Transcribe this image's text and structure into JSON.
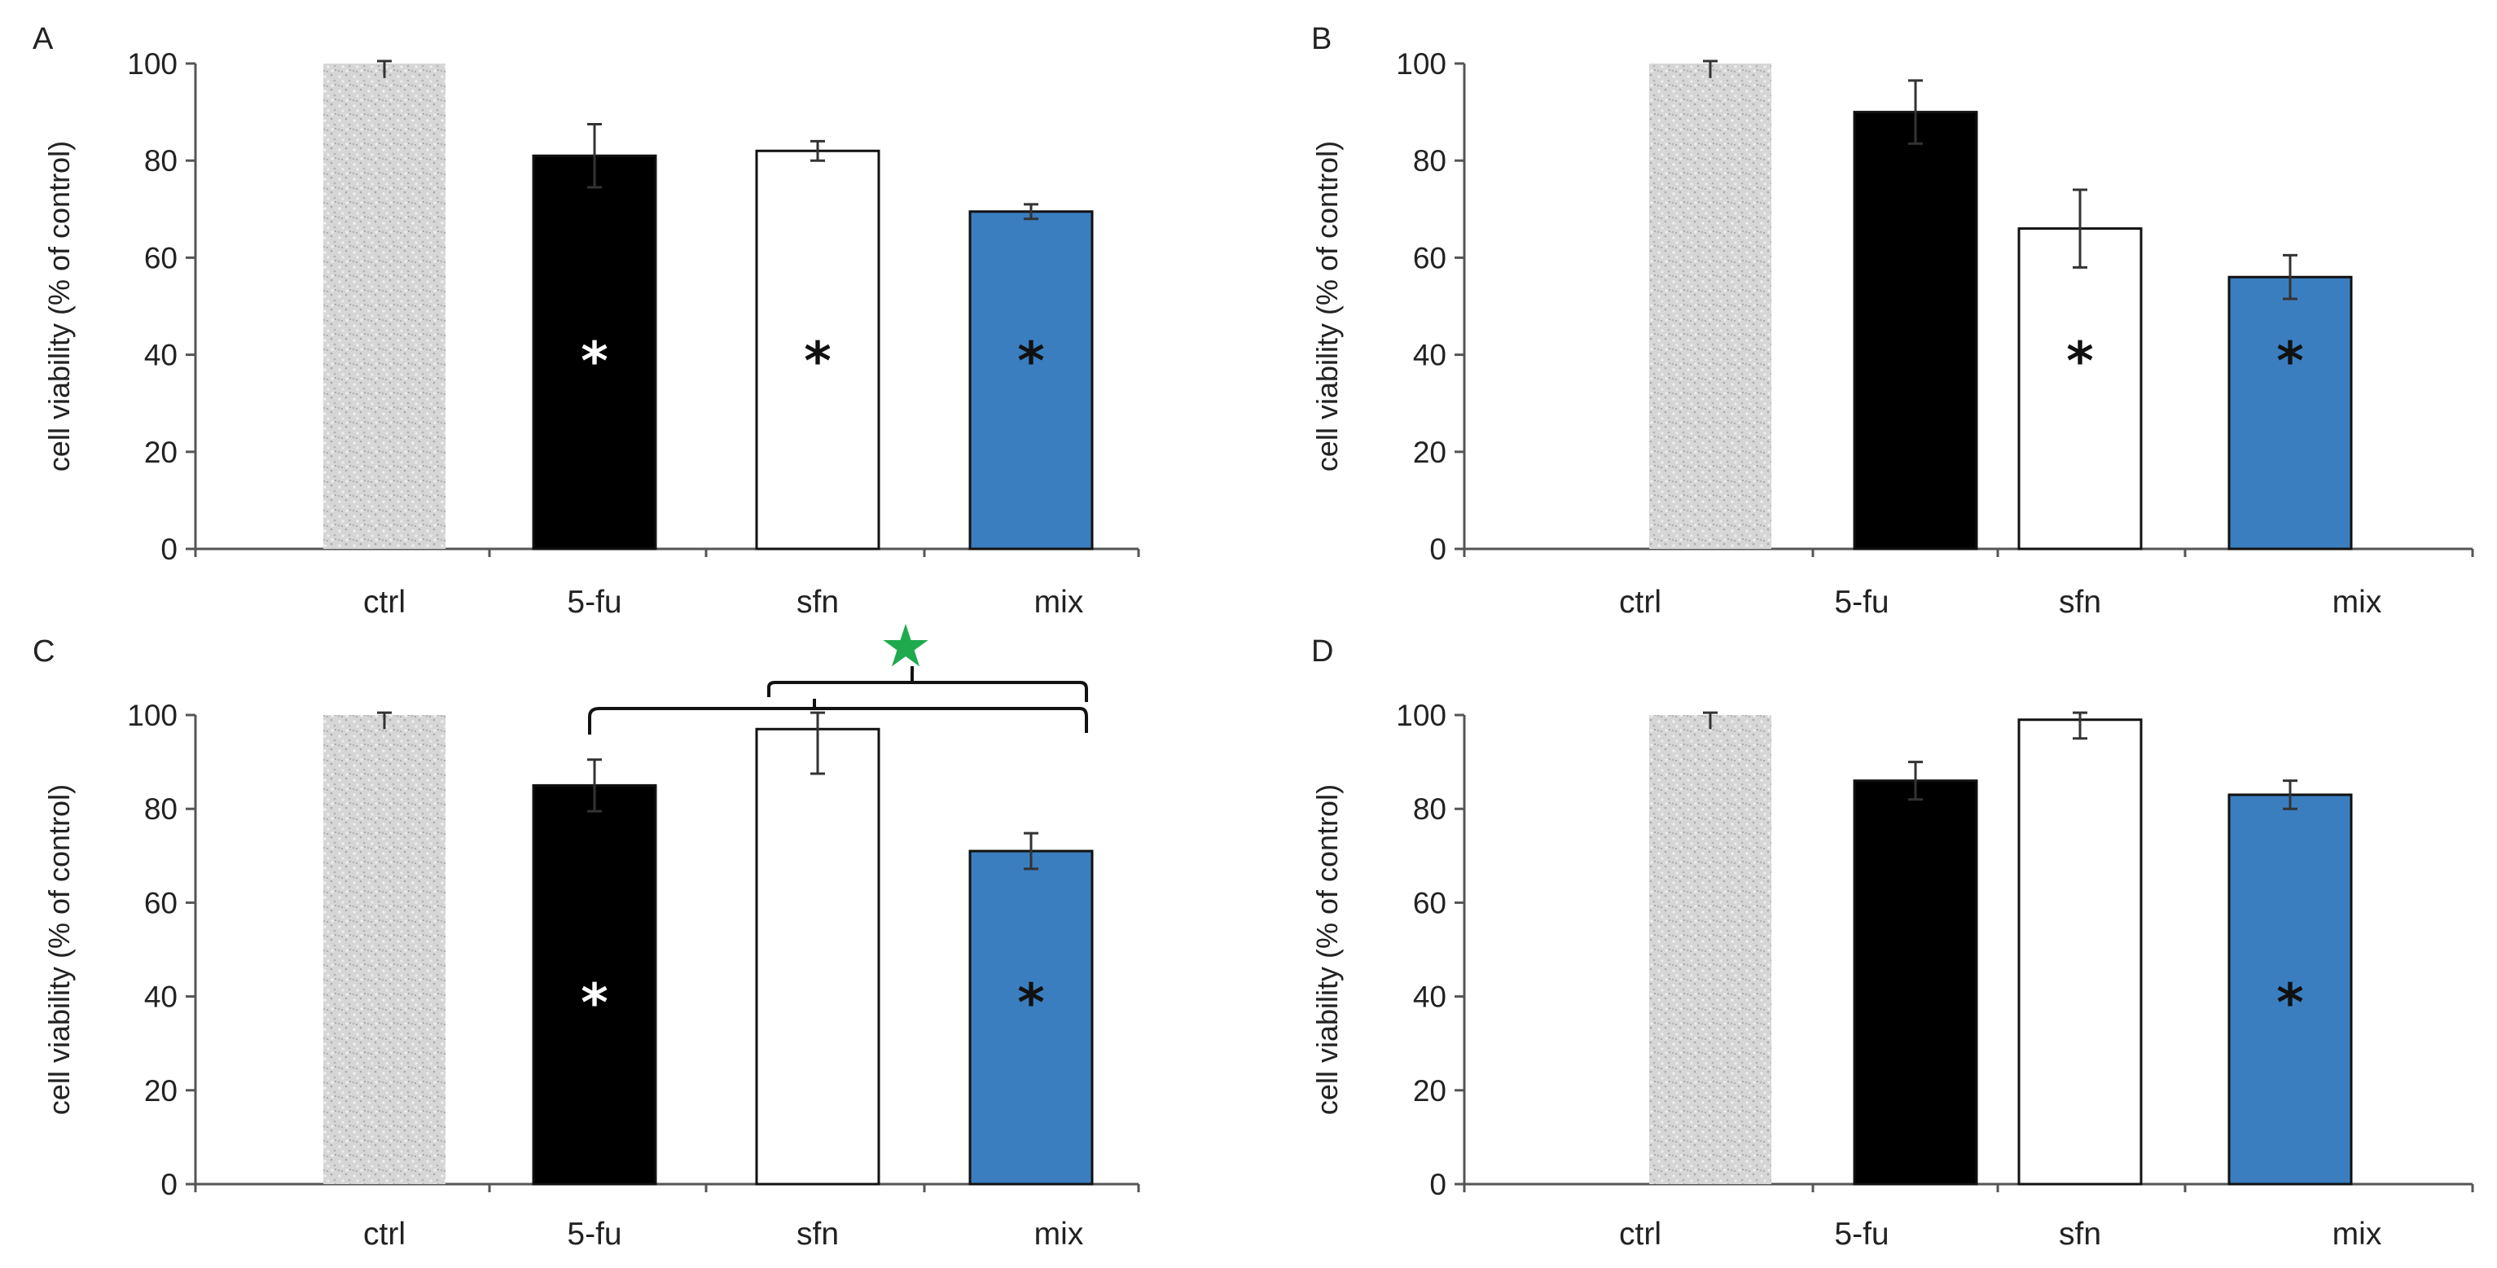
{
  "colors": {
    "ctrl": "#cfcfcf",
    "fu": "#000000",
    "sfn": "#ffffff",
    "mix": "#3a7ebf",
    "axis": "#555555",
    "text": "#222222",
    "star": "#1faa4e"
  },
  "chart_data": [
    {
      "panel": "A",
      "type": "bar",
      "categories": [
        "ctrl",
        "5-fu",
        "sfn",
        "mix"
      ],
      "values": [
        100,
        81,
        82,
        69.5
      ],
      "errors": [
        3,
        6.5,
        2,
        1.5
      ],
      "significance": [
        null,
        "*",
        "*",
        "*"
      ],
      "ylabel": "cell viability  (% of control)",
      "ylim": [
        0,
        100
      ],
      "yticks": [
        "0",
        "20",
        "40",
        "60",
        "80",
        "100"
      ]
    },
    {
      "panel": "B",
      "type": "bar",
      "categories": [
        "ctrl",
        "5-fu",
        "sfn",
        "mix"
      ],
      "values": [
        100,
        90,
        66,
        56
      ],
      "errors": [
        3,
        6.5,
        8,
        4.5
      ],
      "significance": [
        null,
        null,
        "*",
        "*"
      ],
      "ylabel": "cell viability  (% of control)",
      "ylim": [
        0,
        100
      ],
      "yticks": [
        "0",
        "20",
        "40",
        "60",
        "80",
        "100"
      ]
    },
    {
      "panel": "C",
      "type": "bar",
      "categories": [
        "ctrl",
        "5-fu",
        "sfn",
        "mix"
      ],
      "values": [
        100,
        85,
        97,
        71
      ],
      "errors": [
        3,
        5.5,
        9.5,
        3.8
      ],
      "significance": [
        null,
        "*",
        null,
        "*"
      ],
      "combination_marker": "★",
      "ylabel": "cell viability  (% of control)",
      "ylim": [
        0,
        100
      ],
      "yticks": [
        "0",
        "20",
        "40",
        "60",
        "80",
        "100"
      ]
    },
    {
      "panel": "D",
      "type": "bar",
      "categories": [
        "ctrl",
        "5-fu",
        "sfn",
        "mix"
      ],
      "values": [
        100,
        86,
        99,
        83
      ],
      "errors": [
        3,
        4,
        4,
        3
      ],
      "significance": [
        null,
        null,
        null,
        "*"
      ],
      "ylabel": "cell viability  (% of control)",
      "ylim": [
        0,
        100
      ],
      "yticks": [
        "0",
        "20",
        "40",
        "60",
        "80",
        "100"
      ]
    }
  ]
}
